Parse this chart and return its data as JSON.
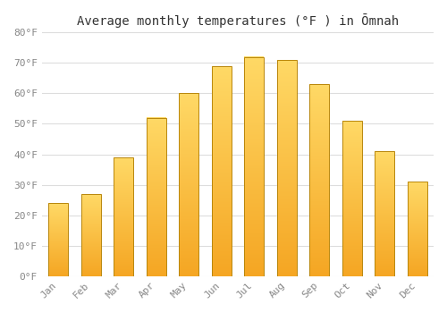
{
  "title": "Average monthly temperatures (°F ) in Ōmnah",
  "months": [
    "Jan",
    "Feb",
    "Mar",
    "Apr",
    "May",
    "Jun",
    "Jul",
    "Aug",
    "Sep",
    "Oct",
    "Nov",
    "Dec"
  ],
  "values": [
    24,
    27,
    39,
    52,
    60,
    69,
    72,
    71,
    63,
    51,
    41,
    31
  ],
  "bar_color_bottom": "#F5A623",
  "bar_color_top": "#FFD966",
  "bar_edge_color": "#B8860B",
  "background_color": "#FFFFFF",
  "grid_color": "#DDDDDD",
  "ylim": [
    0,
    80
  ],
  "yticks": [
    0,
    10,
    20,
    30,
    40,
    50,
    60,
    70,
    80
  ],
  "ytick_labels": [
    "0°F",
    "10°F",
    "20°F",
    "30°F",
    "40°F",
    "50°F",
    "60°F",
    "70°F",
    "80°F"
  ],
  "title_fontsize": 10,
  "tick_fontsize": 8,
  "xlabel_rotation": 45
}
